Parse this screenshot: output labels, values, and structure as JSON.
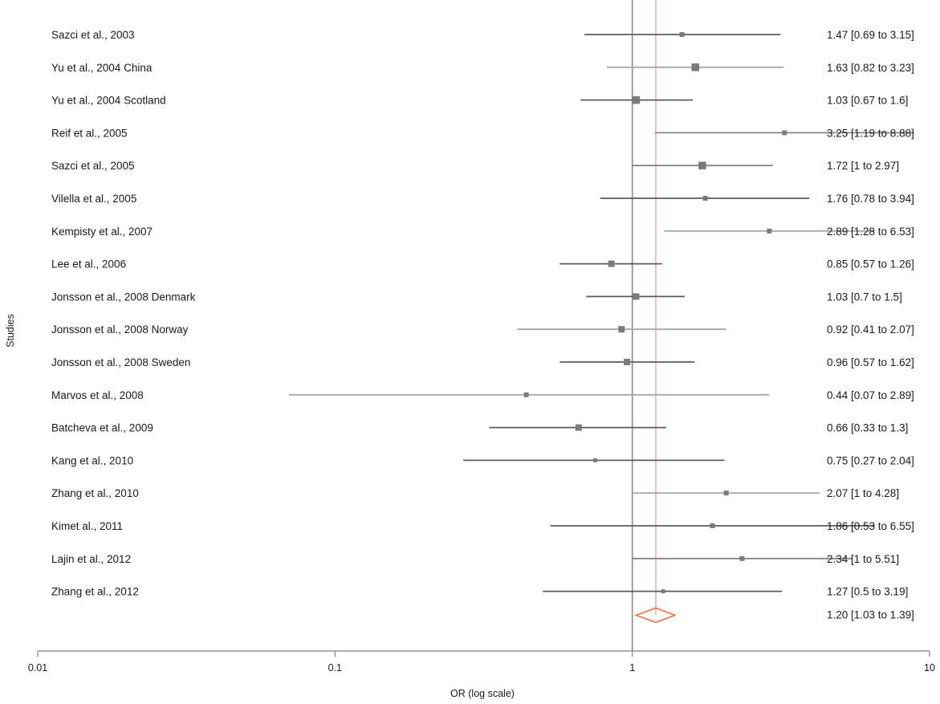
{
  "chart_data": {
    "type": "forest",
    "xlabel": "OR (log scale)",
    "ylabel": "Studies",
    "xscale": "log",
    "xlim": [
      0.01,
      10
    ],
    "ticks": [
      {
        "value": 0.01,
        "label": "0.01"
      },
      {
        "value": 0.1,
        "label": "0.1"
      },
      {
        "value": 1,
        "label": "1"
      },
      {
        "value": 10,
        "label": "10"
      }
    ],
    "reference_line": 1,
    "studies": [
      {
        "name": "Sazci et al., 2003",
        "or": 1.47,
        "lower": 0.69,
        "upper": 3.15,
        "ci_text": "1.47 [0.69 to 3.15]",
        "weight": "small",
        "tone": "dark"
      },
      {
        "name": "Yu et al., 2004 China",
        "or": 1.63,
        "lower": 0.82,
        "upper": 3.23,
        "ci_text": "1.63 [0.82 to 3.23]",
        "weight": "large",
        "tone": "light"
      },
      {
        "name": "Yu et al., 2004 Scotland",
        "or": 1.03,
        "lower": 0.67,
        "upper": 1.6,
        "ci_text": "1.03 [0.67 to 1.6]",
        "weight": "large",
        "tone": "dark"
      },
      {
        "name": "Reif et al., 2005",
        "or": 3.25,
        "lower": 1.19,
        "upper": 8.88,
        "ci_text": "3.25 [1.19 to 8.88]",
        "weight": "small",
        "tone": "mid"
      },
      {
        "name": "Sazci et al., 2005",
        "or": 1.72,
        "lower": 1,
        "upper": 2.97,
        "ci_text": "1.72 [1 to 2.97]",
        "weight": "large",
        "tone": "mid"
      },
      {
        "name": "Vilella et al., 2005",
        "or": 1.76,
        "lower": 0.78,
        "upper": 3.94,
        "ci_text": "1.76 [0.78 to 3.94]",
        "weight": "small",
        "tone": "dark"
      },
      {
        "name": "Kempisty et al., 2007",
        "or": 2.89,
        "lower": 1.28,
        "upper": 6.53,
        "ci_text": "2.89 [1.28 to 6.53]",
        "weight": "small",
        "tone": "light"
      },
      {
        "name": "Lee et al., 2006",
        "or": 0.85,
        "lower": 0.57,
        "upper": 1.26,
        "ci_text": "0.85 [0.57 to 1.26]",
        "weight": "medium",
        "tone": "dark"
      },
      {
        "name": "Jonsson et al., 2008 Denmark",
        "or": 1.03,
        "lower": 0.7,
        "upper": 1.5,
        "ci_text": "1.03 [0.7 to 1.5]",
        "weight": "medium",
        "tone": "dark"
      },
      {
        "name": "Jonsson et al., 2008 Norway",
        "or": 0.92,
        "lower": 0.41,
        "upper": 2.07,
        "ci_text": "0.92 [0.41 to 2.07]",
        "weight": "medium",
        "tone": "light"
      },
      {
        "name": "Jonsson et al., 2008 Sweden",
        "or": 0.96,
        "lower": 0.57,
        "upper": 1.62,
        "ci_text": "0.96 [0.57 to 1.62]",
        "weight": "medium",
        "tone": "dark"
      },
      {
        "name": "Marvos et al., 2008",
        "or": 0.44,
        "lower": 0.07,
        "upper": 2.89,
        "ci_text": "0.44 [0.07 to 2.89]",
        "weight": "small",
        "tone": "light"
      },
      {
        "name": "Batcheva et al., 2009",
        "or": 0.66,
        "lower": 0.33,
        "upper": 1.3,
        "ci_text": "0.66 [0.33 to 1.3]",
        "weight": "medium",
        "tone": "dark"
      },
      {
        "name": "Kang et al., 2010",
        "or": 0.75,
        "lower": 0.27,
        "upper": 2.04,
        "ci_text": "0.75 [0.27 to 2.04]",
        "weight": "tiny",
        "tone": "dark"
      },
      {
        "name": "Zhang et al., 2010",
        "or": 2.07,
        "lower": 1,
        "upper": 4.28,
        "ci_text": "2.07 [1 to 4.28]",
        "weight": "small",
        "tone": "light"
      },
      {
        "name": "Kimet al., 2011",
        "or": 1.86,
        "lower": 0.53,
        "upper": 6.55,
        "ci_text": "1.86 [0.53 to 6.55]",
        "weight": "small",
        "tone": "dark"
      },
      {
        "name": "Lajin et al., 2012",
        "or": 2.34,
        "lower": 1,
        "upper": 5.51,
        "ci_text": "2.34 [1 to 5.51]",
        "weight": "small",
        "tone": "mid"
      },
      {
        "name": "Zhang et al., 2012",
        "or": 1.27,
        "lower": 0.5,
        "upper": 3.19,
        "ci_text": "1.27 [0.5 to 3.19]",
        "weight": "tiny",
        "tone": "dark"
      }
    ],
    "pooled": {
      "or": 1.2,
      "lower": 1.03,
      "upper": 1.39,
      "ci_text": "1.20 [1.03 to 1.39]"
    },
    "colors": {
      "dark": "#5c5c5c",
      "mid": "#868686",
      "light": "#a9a9a9",
      "square": "#7a7a7a",
      "pooled": "#f26b43",
      "pooled_line": "#f4a58a",
      "axis": "#7f7f7f",
      "reference": "#888888"
    }
  }
}
